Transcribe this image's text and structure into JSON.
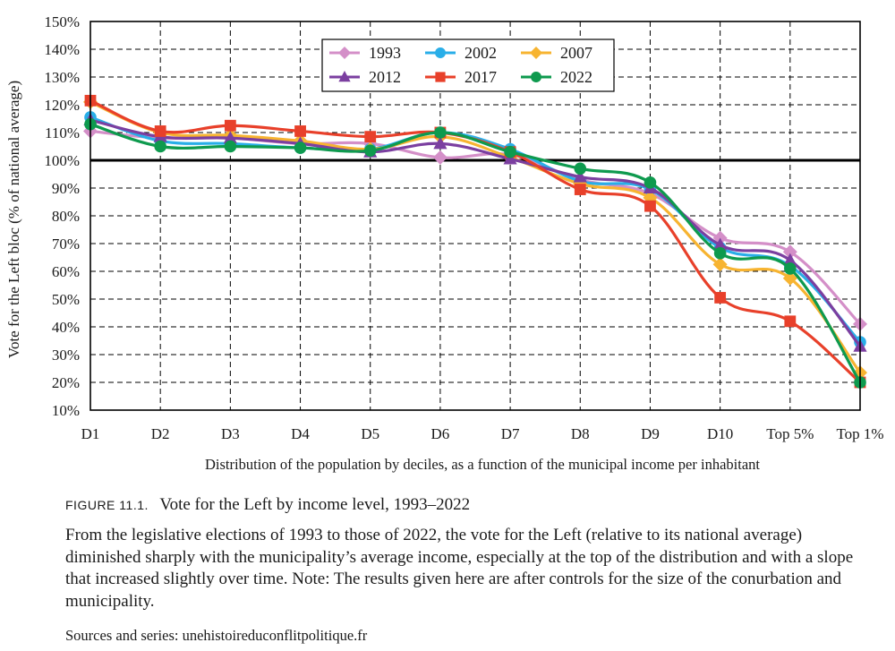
{
  "chart_data": {
    "type": "line",
    "title": "",
    "xlabel": "Distribution of the population by deciles, as a function of the municipal income per inhabitant",
    "ylabel": "Vote for the Left bloc (% of national average)",
    "categories": [
      "D1",
      "D2",
      "D3",
      "D4",
      "D5",
      "D6",
      "D7",
      "D8",
      "D9",
      "D10",
      "Top 5%",
      "Top 1%"
    ],
    "ylim": [
      10,
      150
    ],
    "yticks": [
      "10%",
      "20%",
      "30%",
      "40%",
      "50%",
      "60%",
      "70%",
      "80%",
      "90%",
      "100%",
      "110%",
      "120%",
      "130%",
      "140%",
      "150%"
    ],
    "reference_line": 100,
    "grid": true,
    "legend_position": "top-right",
    "series": [
      {
        "name": "1993",
        "color": "#d48fc8",
        "marker": "diamond",
        "values": [
          110.5,
          108,
          108,
          106,
          106,
          101,
          102,
          93,
          88,
          72,
          67,
          41
        ]
      },
      {
        "name": "2002",
        "color": "#29aee8",
        "marker": "circle",
        "values": [
          115.5,
          107,
          106,
          104.5,
          104,
          110,
          104,
          92.5,
          89.5,
          68.5,
          62,
          34.5
        ]
      },
      {
        "name": "2007",
        "color": "#f7b431",
        "marker": "diamond",
        "values": [
          121,
          110,
          109,
          107,
          104,
          108.5,
          101,
          91.5,
          86.5,
          62.5,
          57.5,
          23.5
        ]
      },
      {
        "name": "2012",
        "color": "#7b3fa0",
        "marker": "triangle",
        "values": [
          114.5,
          108.5,
          108,
          106,
          103,
          106,
          100.5,
          94,
          90,
          69.5,
          64,
          33
        ]
      },
      {
        "name": "2017",
        "color": "#e8402a",
        "marker": "square",
        "values": [
          121.5,
          110.5,
          112.5,
          110.5,
          108.5,
          110,
          103,
          89.5,
          83.5,
          50.5,
          42,
          20
        ]
      },
      {
        "name": "2022",
        "color": "#0e9a4e",
        "marker": "circle",
        "values": [
          113,
          105,
          105,
          104.5,
          103.5,
          110,
          103,
          97,
          92,
          66.5,
          61,
          20
        ]
      }
    ]
  },
  "caption": {
    "figure_label": "FIGURE 11.1.",
    "figure_title": "Vote for the Left by income level, 1993–2022",
    "body": "From the legislative elections of 1993 to those of 2022, the vote for the Left (relative to its national average) diminished sharply with the municipality’s average income, especially at the top of the distribution and with a slope that increased slightly over time. Note: The results given here are after controls for the size of the conurbation and municipality.",
    "sources": "Sources and series: unehistoireduconflitpolitique.fr"
  }
}
